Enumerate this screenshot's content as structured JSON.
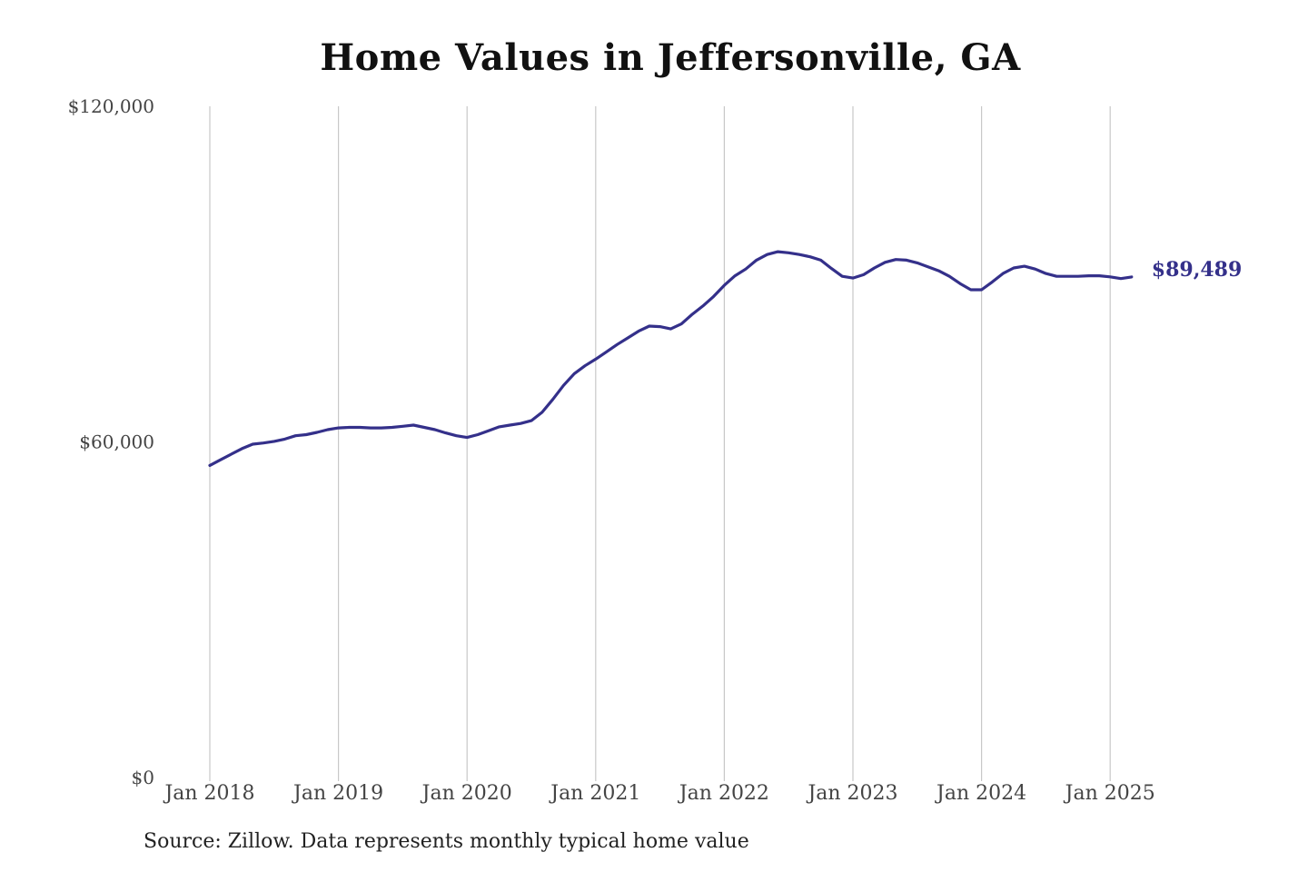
{
  "title": "Home Values in Jeffersonville, GA",
  "source_note": "Source: Zillow. Data represents monthly typical home value",
  "colors": {
    "line": "#34308a",
    "grid": "#c8c8c8",
    "text": "#444444",
    "title": "#111111"
  },
  "chart_data": {
    "type": "line",
    "title": "Home Values in Jeffersonville, GA",
    "xlabel": "",
    "ylabel": "",
    "ylim": [
      0,
      120000
    ],
    "yticks": [
      {
        "value": 0,
        "label": "$0"
      },
      {
        "value": 60000,
        "label": "$60,000"
      },
      {
        "value": 120000,
        "label": "$120,000"
      }
    ],
    "xlim": [
      "2018-01",
      "2025-03"
    ],
    "xticks": [
      {
        "value": "2018-01",
        "label": "Jan 2018"
      },
      {
        "value": "2019-01",
        "label": "Jan 2019"
      },
      {
        "value": "2020-01",
        "label": "Jan 2020"
      },
      {
        "value": "2021-01",
        "label": "Jan 2021"
      },
      {
        "value": "2022-01",
        "label": "Jan 2022"
      },
      {
        "value": "2023-01",
        "label": "Jan 2023"
      },
      {
        "value": "2024-01",
        "label": "Jan 2024"
      },
      {
        "value": "2025-01",
        "label": "Jan 2025"
      }
    ],
    "grid": "vertical",
    "legend": "none",
    "end_label": "$89,489",
    "series": [
      {
        "x": [
          "2018-01",
          "2018-02",
          "2018-03",
          "2018-04",
          "2018-05",
          "2018-06",
          "2018-07",
          "2018-08",
          "2018-09",
          "2018-10",
          "2018-11",
          "2018-12",
          "2019-01",
          "2019-02",
          "2019-03",
          "2019-04",
          "2019-05",
          "2019-06",
          "2019-07",
          "2019-08",
          "2019-09",
          "2019-10",
          "2019-11",
          "2019-12",
          "2020-01",
          "2020-02",
          "2020-03",
          "2020-04",
          "2020-05",
          "2020-06",
          "2020-07",
          "2020-08",
          "2020-09",
          "2020-10",
          "2020-11",
          "2020-12",
          "2021-01",
          "2021-02",
          "2021-03",
          "2021-04",
          "2021-05",
          "2021-06",
          "2021-07",
          "2021-08",
          "2021-09",
          "2021-10",
          "2021-11",
          "2021-12",
          "2022-01",
          "2022-02",
          "2022-03",
          "2022-04",
          "2022-05",
          "2022-06",
          "2022-07",
          "2022-08",
          "2022-09",
          "2022-10",
          "2022-11",
          "2022-12",
          "2023-01",
          "2023-02",
          "2023-03",
          "2023-04",
          "2023-05",
          "2023-06",
          "2023-07",
          "2023-08",
          "2023-09",
          "2023-10",
          "2023-11",
          "2023-12",
          "2024-01",
          "2024-02",
          "2024-03",
          "2024-04",
          "2024-05",
          "2024-06",
          "2024-07",
          "2024-08",
          "2024-09",
          "2024-10",
          "2024-11",
          "2024-12",
          "2025-01",
          "2025-02",
          "2025-03"
        ],
        "values": [
          55800,
          56800,
          57800,
          58800,
          59600,
          59800,
          60100,
          60500,
          61100,
          61300,
          61700,
          62200,
          62500,
          62600,
          62600,
          62500,
          62500,
          62600,
          62800,
          63000,
          62600,
          62200,
          61600,
          61100,
          60800,
          61300,
          62000,
          62700,
          63000,
          63300,
          63800,
          65300,
          67600,
          70100,
          72200,
          73600,
          74800,
          76100,
          77400,
          78600,
          79800,
          80700,
          80600,
          80200,
          81100,
          82800,
          84300,
          86000,
          88000,
          89700,
          90900,
          92500,
          93500,
          94000,
          93800,
          93500,
          93100,
          92500,
          91000,
          89600,
          89300,
          89900,
          91100,
          92100,
          92600,
          92500,
          92000,
          91300,
          90600,
          89600,
          88300,
          87200,
          87200,
          88600,
          90100,
          91100,
          91400,
          90900,
          90100,
          89600,
          89600,
          89600,
          89700,
          89700,
          89500,
          89200,
          89489
        ]
      }
    ]
  }
}
